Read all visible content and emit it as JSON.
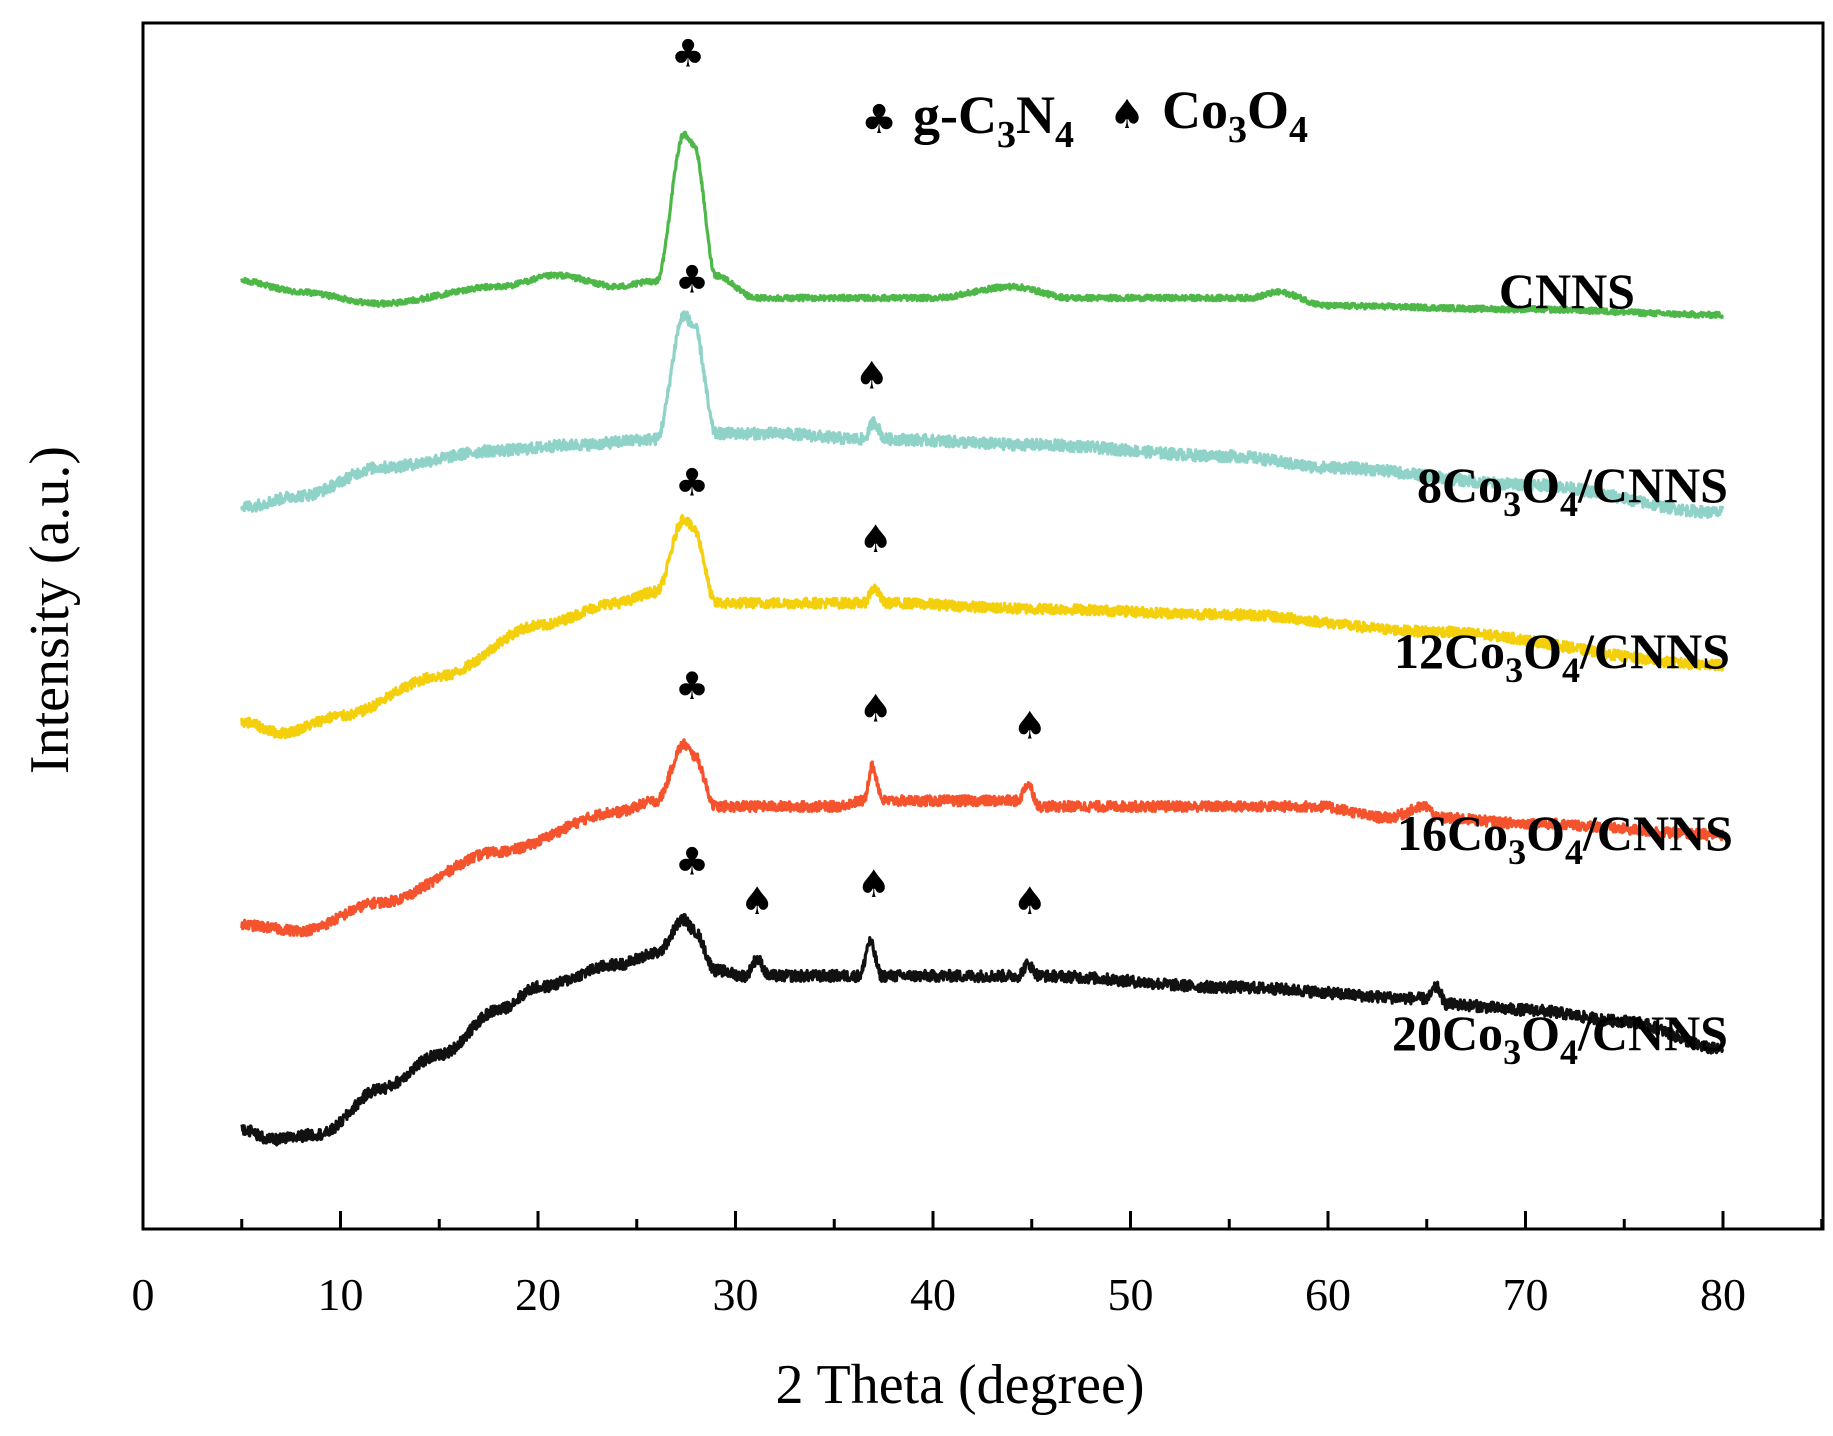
{
  "chart_data": {
    "type": "line",
    "title": "",
    "xlabel": "2 Theta (degree)",
    "ylabel": "Intensity (a.u.)",
    "xlim": [
      0,
      85
    ],
    "xticks": [
      0,
      10,
      20,
      30,
      40,
      50,
      60,
      70,
      80
    ],
    "ylim": [
      0,
      100
    ],
    "grid": false,
    "legend": {
      "position": "top-center",
      "entries": [
        {
          "symbol": "♣",
          "phase": "g-C3N4",
          "text": "g-C",
          "sub1": "3",
          "mid": "N",
          "sub2": "4"
        },
        {
          "symbol": "♠",
          "phase": "Co3O4",
          "text": "Co",
          "sub1": "3",
          "mid": "O",
          "sub2": "4"
        }
      ]
    },
    "series": [
      {
        "name": "CNNS",
        "label_parts": [
          {
            "t": "CNNS",
            "sub": false
          }
        ],
        "color": "#4db848",
        "noise": 0.25,
        "points": [
          [
            5,
            80
          ],
          [
            8,
            79
          ],
          [
            12,
            78
          ],
          [
            18,
            79.5
          ],
          [
            21,
            80.5
          ],
          [
            24,
            79.5
          ],
          [
            26,
            80
          ],
          [
            27.4,
            93
          ],
          [
            27.9,
            92
          ],
          [
            29,
            80.5
          ],
          [
            31,
            78.5
          ],
          [
            40,
            78.5
          ],
          [
            44,
            79.5
          ],
          [
            47,
            78.5
          ],
          [
            56,
            78.5
          ],
          [
            57.5,
            79
          ],
          [
            60,
            77.8
          ],
          [
            70,
            77.5
          ],
          [
            80,
            77
          ]
        ],
        "markers": [
          {
            "x": 27.6,
            "y": 99,
            "symbol": "♣"
          }
        ]
      },
      {
        "name": "8Co3O4/CNNS",
        "label_parts": [
          {
            "t": "8Co",
            "sub": false
          },
          {
            "t": "3",
            "sub": true
          },
          {
            "t": "O",
            "sub": false
          },
          {
            "t": "4",
            "sub": true
          },
          {
            "t": "/CNNS",
            "sub": false
          }
        ],
        "color": "#8fd3c8",
        "noise": 0.5,
        "points": [
          [
            5,
            60
          ],
          [
            8,
            61
          ],
          [
            12,
            63.5
          ],
          [
            18,
            65
          ],
          [
            22,
            65.5
          ],
          [
            26,
            66
          ],
          [
            27.4,
            77
          ],
          [
            27.9,
            76
          ],
          [
            29,
            66.5
          ],
          [
            32,
            66.5
          ],
          [
            36.5,
            66
          ],
          [
            37,
            67.5
          ],
          [
            37.6,
            66
          ],
          [
            45,
            65.5
          ],
          [
            55,
            64.5
          ],
          [
            60,
            63.5
          ],
          [
            70,
            62
          ],
          [
            80,
            59.5
          ]
        ],
        "markers": [
          {
            "x": 27.8,
            "y": 79,
            "symbol": "♣"
          },
          {
            "x": 36.9,
            "y": 70.5,
            "symbol": "♠"
          }
        ]
      },
      {
        "name": "12Co3O4/CNNS",
        "label_parts": [
          {
            "t": "12Co",
            "sub": false
          },
          {
            "t": "3",
            "sub": true
          },
          {
            "t": "O",
            "sub": false
          },
          {
            "t": "4",
            "sub": true
          },
          {
            "t": "/CNNS",
            "sub": false
          }
        ],
        "color": "#f4d00c",
        "noise": 0.45,
        "points": [
          [
            5,
            41
          ],
          [
            7,
            40
          ],
          [
            10,
            41.5
          ],
          [
            15,
            45
          ],
          [
            20,
            49.5
          ],
          [
            24,
            51.5
          ],
          [
            26,
            52.5
          ],
          [
            27.4,
            59
          ],
          [
            27.9,
            58
          ],
          [
            29,
            51.5
          ],
          [
            36.5,
            51.5
          ],
          [
            37,
            52.8
          ],
          [
            37.6,
            51.5
          ],
          [
            45,
            51
          ],
          [
            55,
            50.5
          ],
          [
            65,
            49
          ],
          [
            80,
            46
          ]
        ],
        "markers": [
          {
            "x": 27.8,
            "y": 61,
            "symbol": "♣"
          },
          {
            "x": 37.1,
            "y": 56,
            "symbol": "♠"
          }
        ]
      },
      {
        "name": "16Co3O4/CNNS",
        "label_parts": [
          {
            "t": "16Co",
            "sub": false
          },
          {
            "t": "3",
            "sub": true
          },
          {
            "t": "O",
            "sub": false
          },
          {
            "t": "4",
            "sub": true
          },
          {
            "t": "/CNNS",
            "sub": false
          }
        ],
        "color": "#f5532d",
        "noise": 0.45,
        "points": [
          [
            5,
            23
          ],
          [
            8,
            22.5
          ],
          [
            12,
            25
          ],
          [
            18,
            29.5
          ],
          [
            24,
            33
          ],
          [
            26,
            34
          ],
          [
            27.4,
            39
          ],
          [
            27.9,
            38
          ],
          [
            29,
            33.5
          ],
          [
            35,
            33.5
          ],
          [
            36.5,
            34
          ],
          [
            36.9,
            37
          ],
          [
            37.5,
            34
          ],
          [
            44.3,
            34
          ],
          [
            44.8,
            35.5
          ],
          [
            45.4,
            33.5
          ],
          [
            55,
            33.5
          ],
          [
            59.5,
            33.5
          ],
          [
            63,
            32.5
          ],
          [
            65,
            33.5
          ],
          [
            65.5,
            32.5
          ],
          [
            70,
            32
          ],
          [
            80,
            31
          ]
        ],
        "markers": [
          {
            "x": 27.8,
            "y": 43,
            "symbol": "♣"
          },
          {
            "x": 37.1,
            "y": 41,
            "symbol": "♠"
          },
          {
            "x": 44.9,
            "y": 39.5,
            "symbol": "♠"
          }
        ]
      },
      {
        "name": "20Co3O4/CNNS",
        "label_parts": [
          {
            "t": "20Co",
            "sub": false
          },
          {
            "t": "3",
            "sub": true
          },
          {
            "t": "O",
            "sub": false
          },
          {
            "t": "4",
            "sub": true
          },
          {
            "t": "/CNNS",
            "sub": false
          }
        ],
        "color": "#111111",
        "noise": 0.5,
        "points": [
          [
            5,
            5
          ],
          [
            6.5,
            4
          ],
          [
            9,
            4.5
          ],
          [
            12,
            8.5
          ],
          [
            15,
            11.5
          ],
          [
            18,
            15.5
          ],
          [
            20,
            17.5
          ],
          [
            24,
            19.5
          ],
          [
            26,
            20.5
          ],
          [
            27.4,
            23.5
          ],
          [
            27.9,
            22.5
          ],
          [
            29,
            19
          ],
          [
            30.5,
            18.5
          ],
          [
            31.1,
            20
          ],
          [
            31.7,
            18.5
          ],
          [
            36.3,
            18.5
          ],
          [
            36.8,
            21.5
          ],
          [
            37.4,
            18.5
          ],
          [
            44.3,
            18.5
          ],
          [
            44.8,
            19.5
          ],
          [
            45.4,
            18.5
          ],
          [
            55,
            17.5
          ],
          [
            65,
            16.5
          ],
          [
            65.5,
            17.5
          ],
          [
            66,
            16
          ],
          [
            70,
            15.5
          ],
          [
            75,
            14.5
          ],
          [
            80,
            12
          ]
        ],
        "markers": [
          {
            "x": 27.8,
            "y": 27.5,
            "symbol": "♣"
          },
          {
            "x": 31.1,
            "y": 24,
            "symbol": "♠"
          },
          {
            "x": 37.0,
            "y": 25.5,
            "symbol": "♠"
          },
          {
            "x": 44.9,
            "y": 24,
            "symbol": "♠"
          }
        ]
      }
    ]
  }
}
